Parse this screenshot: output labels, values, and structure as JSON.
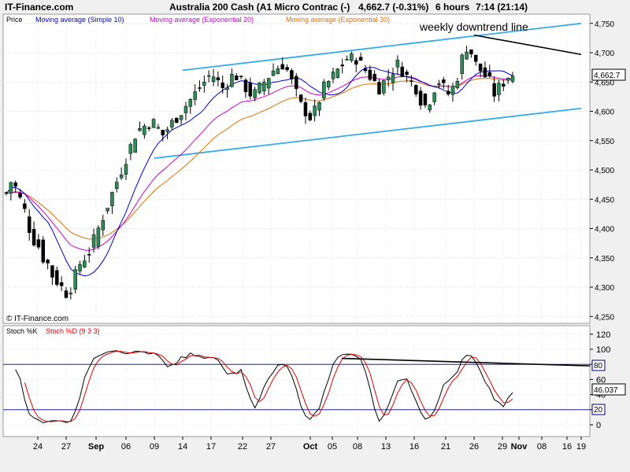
{
  "header": {
    "site": "IT-Finance.com",
    "instrument": "Australia 200 Cash (A1 Micro Contrac (-)",
    "quote": "4,662.7 (-0.31%)",
    "timeframe": "6 hours",
    "time": "7:14 (21:14)"
  },
  "price_panel": {
    "legend": {
      "price": "Price",
      "sma": "Moving average (Simple 10)",
      "ema20": "Moving average (Exponential 20)",
      "ema30": "Moving average (Exponential 30)"
    },
    "copyright": "© IT-Finance.com",
    "annotation": "weekly downtrend line",
    "last_price_label": "4,662.7"
  },
  "stoch_panel": {
    "legend_k": "Stoch %K",
    "legend_d": "Stoch %D (9 3 3)",
    "last_value_label": "46.037",
    "overbought_label": "80",
    "oversold_label": "20"
  },
  "colors": {
    "up_candle": "#2e8b57",
    "down_candle": "#000000",
    "sma": "#0000cc",
    "ema20": "#cc00cc",
    "ema30": "#e07000",
    "channel": "#33aaee",
    "trendline": "#000000",
    "stoch_k": "#000000",
    "stoch_d": "#e00000",
    "level_line": "#000080"
  },
  "chart_data": [
    {
      "type": "candlestick",
      "title": "Australia 200 Cash (A1 Micro Contrac (-)",
      "x_ticks": [
        "24",
        "27",
        "Sep",
        "06",
        "09",
        "14",
        "17",
        "22",
        "27",
        "Oct",
        "05",
        "08",
        "13",
        "16",
        "21",
        "26",
        "29",
        "Nov",
        "08",
        "16",
        "19"
      ],
      "ylim": [
        4240,
        4770
      ],
      "y_ticks": [
        "4,250",
        "4,300",
        "4,350",
        "4,400",
        "4,450",
        "4,500",
        "4,550",
        "4,600",
        "4,650",
        "4,700",
        "4,750"
      ],
      "last_price": 4662.7,
      "close_path": [
        4460,
        4480,
        4470,
        4450,
        4430,
        4400,
        4380,
        4370,
        4350,
        4340,
        4320,
        4310,
        4300,
        4290,
        4300,
        4320,
        4340,
        4350,
        4360,
        4380,
        4400,
        4420,
        4440,
        4460,
        4480,
        4500,
        4520,
        4540,
        4560,
        4570,
        4575,
        4580,
        4580,
        4570,
        4560,
        4570,
        4580,
        4590,
        4600,
        4610,
        4620,
        4630,
        4640,
        4650,
        4660,
        4660,
        4650,
        4640,
        4650,
        4660,
        4660,
        4650,
        4640,
        4630,
        4630,
        4640,
        4650,
        4660,
        4670,
        4675,
        4680,
        4670,
        4650,
        4630,
        4610,
        4600,
        4590,
        4600,
        4620,
        4640,
        4650,
        4660,
        4670,
        4680,
        4690,
        4690,
        4690,
        4680,
        4670,
        4660,
        4650,
        4640,
        4650,
        4660,
        4670,
        4680,
        4670,
        4660,
        4650,
        4640,
        4620,
        4610,
        4620,
        4640,
        4650,
        4640,
        4630,
        4640,
        4660,
        4690,
        4710,
        4700,
        4680,
        4670,
        4660,
        4650,
        4630,
        4640,
        4650,
        4660,
        4662.7
      ],
      "channel_upper": [
        {
          "x": "14",
          "y": 4670
        },
        {
          "x": "19",
          "y": 4750
        }
      ],
      "channel_lower": [
        {
          "x": "09",
          "y": 4520
        },
        {
          "x": "19",
          "y": 4605
        }
      ],
      "weekly_downtrend_line": [
        {
          "x": "26",
          "y": 4730
        },
        {
          "x": "19",
          "y": 4697
        }
      ],
      "series": [
        {
          "name": "Price"
        },
        {
          "name": "Moving average (Simple 10)"
        },
        {
          "name": "Moving average (Exponential 20)"
        },
        {
          "name": "Moving average (Exponential 30)"
        }
      ]
    },
    {
      "type": "line",
      "title": "Stoch %K Stoch %D (9 3 3)",
      "ylim": [
        -5,
        125
      ],
      "y_ticks": [
        "0",
        "20",
        "40",
        "60",
        "80",
        "100",
        "120"
      ],
      "levels": [
        20,
        80
      ],
      "last_value": 46.037,
      "series": [
        {
          "name": "Stoch %K"
        },
        {
          "name": "Stoch %D (9 3 3)"
        }
      ]
    }
  ]
}
